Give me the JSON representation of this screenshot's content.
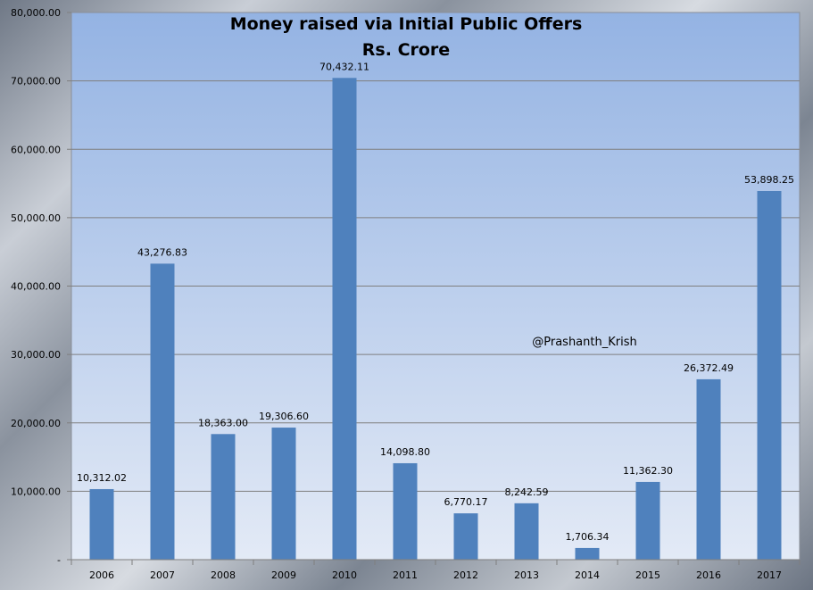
{
  "chart_data": {
    "type": "bar",
    "title": "Money raised via Initial Public Offers",
    "subtitle": "Rs. Crore",
    "categories": [
      "2006",
      "2007",
      "2008",
      "2009",
      "2010",
      "2011",
      "2012",
      "2013",
      "2014",
      "2015",
      "2016",
      "2017"
    ],
    "values": [
      10312.02,
      43276.83,
      18363.0,
      19306.6,
      70432.11,
      14098.8,
      6770.17,
      8242.59,
      1706.34,
      11362.3,
      26372.49,
      53898.25
    ],
    "data_labels": [
      "10,312.02",
      "43,276.83",
      "18,363.00",
      "19,306.60",
      "70,432.11",
      "14,098.80",
      "6,770.17",
      "8,242.59",
      "1,706.34",
      "11,362.30",
      "26,372.49",
      "53,898.25"
    ],
    "y_ticks": [
      0,
      10000,
      20000,
      30000,
      40000,
      50000,
      60000,
      70000,
      80000
    ],
    "y_tick_labels": [
      "-",
      "10,000.00",
      "20,000.00",
      "30,000.00",
      "40,000.00",
      "50,000.00",
      "60,000.00",
      "70,000.00",
      "80,000.00"
    ],
    "ylim": [
      0,
      80000
    ],
    "xlabel": "",
    "ylabel": "",
    "grid": true,
    "legend": "none",
    "annotation": "@Prashanth_Krish",
    "bar_color": "#4f81bd",
    "plot_gradient_top": "#94b3e3",
    "plot_gradient_bottom": "#e3eaf6"
  }
}
